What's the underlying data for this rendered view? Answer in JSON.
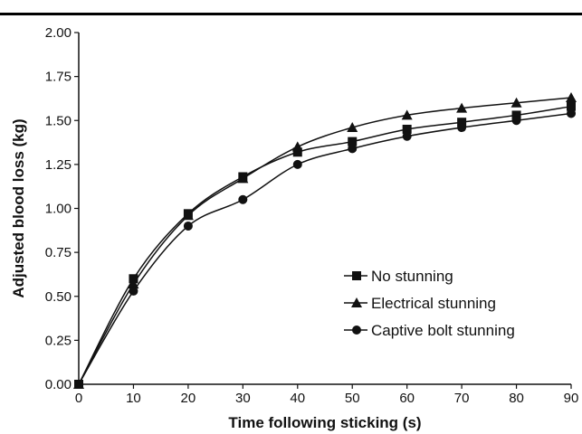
{
  "chart_data": {
    "type": "line",
    "title": "",
    "xlabel": "Time following sticking (s)",
    "ylabel": "Adjusted blood loss (kg)",
    "x": [
      0,
      10,
      20,
      30,
      40,
      50,
      60,
      70,
      80,
      90
    ],
    "xlim": [
      0,
      90
    ],
    "ylim": [
      0,
      2.0
    ],
    "x_ticks": [
      "0",
      "10",
      "20",
      "30",
      "40",
      "50",
      "60",
      "70",
      "80",
      "90"
    ],
    "y_ticks": [
      "0.00",
      "0.25",
      "0.50",
      "0.75",
      "1.00",
      "1.25",
      "1.50",
      "1.75",
      "2.00"
    ],
    "grid": false,
    "legend_position": "lower-right",
    "series": [
      {
        "name": "No stunning",
        "marker": "square",
        "values": [
          0.0,
          0.6,
          0.97,
          1.18,
          1.32,
          1.38,
          1.45,
          1.49,
          1.53,
          1.58
        ]
      },
      {
        "name": "Electrical stunning",
        "marker": "triangle",
        "values": [
          0.0,
          0.57,
          0.96,
          1.17,
          1.35,
          1.46,
          1.53,
          1.57,
          1.6,
          1.63
        ]
      },
      {
        "name": "Captive bolt stunning",
        "marker": "circle",
        "values": [
          0.0,
          0.53,
          0.9,
          1.05,
          1.25,
          1.34,
          1.41,
          1.46,
          1.5,
          1.54
        ]
      }
    ]
  }
}
